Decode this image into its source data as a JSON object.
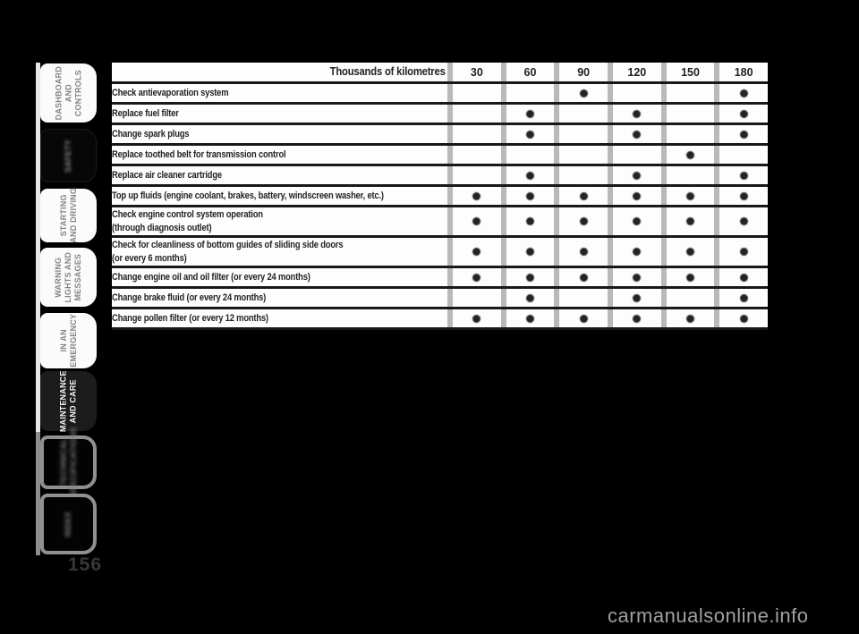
{
  "page": {
    "page_number": "156",
    "watermark": "carmanualsonline.info"
  },
  "sidebar": {
    "tabs": [
      {
        "id": "dashboard-and-controls",
        "label": "DASHBOARD\nAND CONTROLS",
        "style": "light"
      },
      {
        "id": "safety",
        "label": "SAFETY",
        "style": "dark-faint"
      },
      {
        "id": "starting-and-driving",
        "label": "STARTING\nAND DRIVING",
        "style": "light"
      },
      {
        "id": "warning-lights-and-messages",
        "label": "WARNING\nLIGHTS AND\nMESSAGES",
        "style": "light"
      },
      {
        "id": "in-an-emergency",
        "label": "IN AN\nEMERGENCY",
        "style": "light"
      },
      {
        "id": "maintenance-and-care",
        "label": "MAINTENANCE\nAND CARE",
        "style": "active"
      },
      {
        "id": "technical-specifications",
        "label": "TECHNICAL\nSPECIFICATIONS",
        "style": "outline-faint"
      },
      {
        "id": "index",
        "label": "INDEX",
        "style": "outline-faint"
      }
    ]
  },
  "table": {
    "header": {
      "label": "Thousands of kilometres",
      "columns": [
        "30",
        "60",
        "90",
        "120",
        "150",
        "180"
      ]
    },
    "rows": [
      {
        "label": "Check antievaporation system",
        "dots": [
          0,
          0,
          1,
          0,
          0,
          1
        ]
      },
      {
        "label": "Replace fuel filter",
        "dots": [
          0,
          1,
          0,
          1,
          0,
          1
        ]
      },
      {
        "label": "Change spark plugs",
        "dots": [
          0,
          1,
          0,
          1,
          0,
          1
        ]
      },
      {
        "label": "Replace toothed belt for transmission control",
        "dots": [
          0,
          0,
          0,
          0,
          1,
          0
        ]
      },
      {
        "label": "Replace air cleaner cartridge",
        "dots": [
          0,
          1,
          0,
          1,
          0,
          1
        ]
      },
      {
        "label": "Top up fluids (engine coolant, brakes, battery, windscreen washer, etc.)",
        "dots": [
          1,
          1,
          1,
          1,
          1,
          1
        ]
      },
      {
        "label": "Check engine control system operation\n(through diagnosis outlet)",
        "dots": [
          1,
          1,
          1,
          1,
          1,
          1
        ]
      },
      {
        "label": "Check for cleanliness of bottom guides of sliding side doors\n(or every 6 months)",
        "dots": [
          1,
          1,
          1,
          1,
          1,
          1
        ]
      },
      {
        "label": "Change engine oil and oil filter (or every 24 months)",
        "dots": [
          1,
          1,
          1,
          1,
          1,
          1
        ]
      },
      {
        "label": "Change brake fluid (or every 24 months)",
        "dots": [
          0,
          1,
          0,
          1,
          0,
          1
        ]
      },
      {
        "label": "Change pollen filter (or every 12 months)",
        "dots": [
          1,
          1,
          1,
          1,
          1,
          1
        ]
      }
    ]
  },
  "colors": {
    "background": "#000000",
    "row_background": "#fdfdfd",
    "rule": "#1b1718",
    "separator_bar": "#b9b9b9",
    "tab_text": "#848484",
    "active_tab_background": "#1c1c1c",
    "active_tab_text": "#f4f4f4",
    "watermark_text": "#a0a0a0"
  }
}
